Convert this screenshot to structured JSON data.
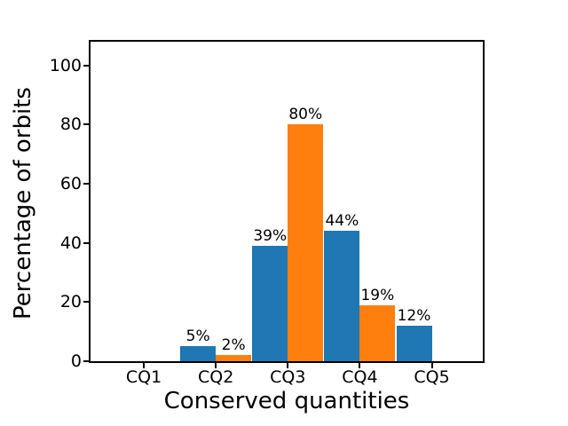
{
  "chart_data": {
    "type": "bar",
    "title": "",
    "xlabel": "Conserved quantities",
    "ylabel": "Percentage of orbits",
    "categories": [
      "CQ1",
      "CQ2",
      "CQ3",
      "CQ4",
      "CQ5"
    ],
    "series": [
      {
        "name": "blue-series",
        "color": "#1f77b4",
        "values": [
          0,
          5,
          39,
          44,
          12
        ],
        "bar_labels": [
          "",
          "5%",
          "39%",
          "44%",
          "12%"
        ]
      },
      {
        "name": "orange-series",
        "color": "#ff7f0e",
        "values": [
          0,
          2,
          80,
          19,
          0
        ],
        "bar_labels": [
          "",
          "2%",
          "80%",
          "19%",
          ""
        ]
      }
    ],
    "yticks": [
      0,
      20,
      40,
      60,
      80,
      100
    ],
    "ytick_labels": [
      "0",
      "20",
      "40",
      "60",
      "80",
      "100"
    ],
    "ylim": [
      0,
      108
    ],
    "grid": false,
    "legend_position": "none",
    "axis_color": "#000000",
    "text_color": "#000000",
    "background_color": "#ffffff"
  }
}
